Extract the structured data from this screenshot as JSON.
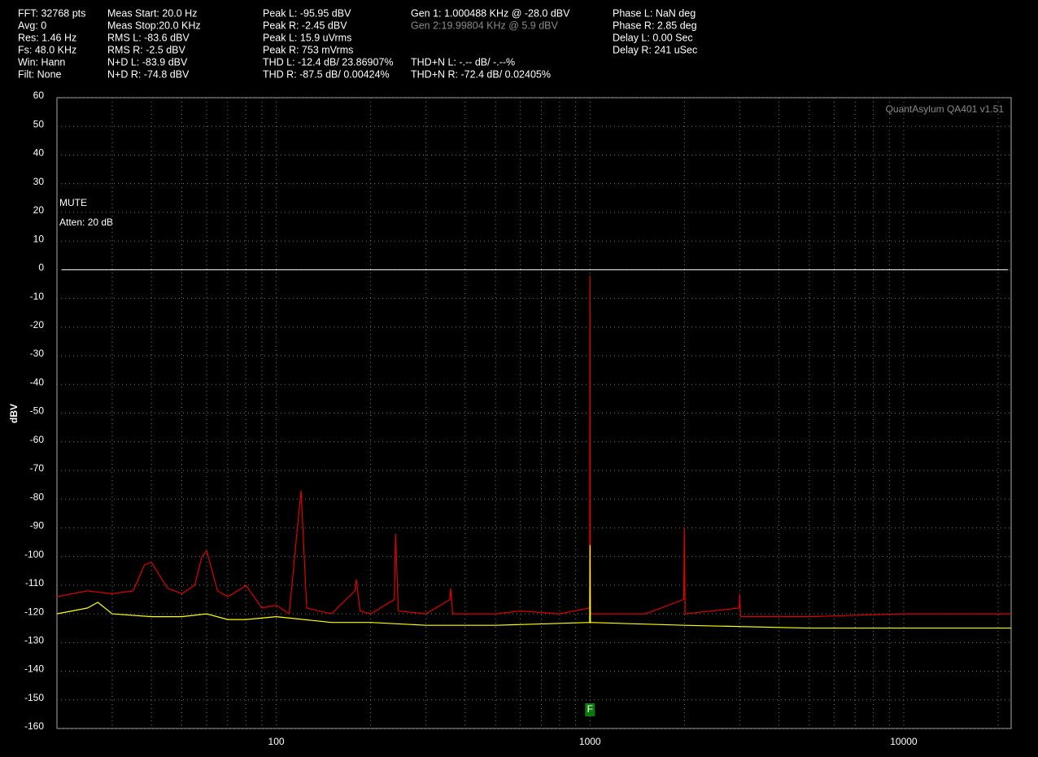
{
  "header": {
    "columns": [
      [
        "FFT: 32768 pts",
        "Avg: 0",
        "Res: 1.46 Hz",
        "Fs: 48.0 KHz",
        "Win: Hann",
        "Filt: None"
      ],
      [
        "Meas Start: 20.0 Hz",
        "Meas Stop:20.0 KHz",
        "RMS L: -83.6 dBV",
        "RMS R: -2.5 dBV",
        "N+D L: -83.9 dBV",
        "N+D R: -74.8 dBV"
      ],
      [
        "Peak L: -95.95 dBV",
        "Peak R: -2.45 dBV",
        "Peak L: 15.9 uVrms",
        "Peak R: 753 mVrms",
        "THD L: -12.4 dB/ 23.86907%",
        "THD R: -87.5 dB/ 0.00424%"
      ],
      [
        "Gen 1: 1.000488 KHz @ -28.0  dBV",
        "Gen 2:19.99804 KHz @ 5.9  dBV"
      ],
      [
        "THD+N L: -.-- dB/ -.--%",
        "THD+N R: -72.4 dB/ 0.02405%"
      ],
      [
        "Phase L: NaN deg",
        "Phase R: 2.85 deg",
        "Delay L: 0.00 Sec",
        "Delay R: 241 uSec"
      ]
    ]
  },
  "chart_data": {
    "type": "line",
    "ylabel": "dBV",
    "watermark": "QuantAsylum QA401 v1.51",
    "annotations": [
      "MUTE",
      "Atten: 20 dB"
    ],
    "marker": {
      "label": "F",
      "x": 1000
    },
    "xscale": "log",
    "xlim": [
      20,
      22000
    ],
    "xticks": [
      100,
      1000,
      10000
    ],
    "xgrid_minor": [
      30,
      40,
      50,
      60,
      70,
      80,
      90,
      200,
      300,
      400,
      500,
      600,
      700,
      800,
      900,
      2000,
      3000,
      4000,
      5000,
      6000,
      7000,
      8000,
      9000,
      20000
    ],
    "ylim": [
      -160,
      60
    ],
    "yticks": [
      -160,
      -150,
      -140,
      -130,
      -120,
      -110,
      -100,
      -90,
      -80,
      -70,
      -60,
      -50,
      -40,
      -30,
      -20,
      -10,
      0,
      10,
      20,
      30,
      40,
      50,
      60
    ],
    "reference_line": 0,
    "grid": true,
    "series": [
      {
        "color": "#e00000",
        "x": [
          20,
          25,
          30,
          35,
          38,
          40,
          45,
          50,
          55,
          58,
          60,
          65,
          70,
          78,
          80,
          90,
          100,
          110,
          118,
          120,
          125,
          150,
          178,
          180,
          185,
          200,
          238,
          240,
          245,
          300,
          358,
          360,
          365,
          500,
          600,
          800,
          998,
          1000,
          1003,
          1500,
          1990,
          2000,
          2010,
          2990,
          3000,
          3020,
          5000,
          10000,
          22000
        ],
        "values": [
          -114,
          -112,
          -113,
          -112,
          -103,
          -102,
          -111,
          -113,
          -110,
          -100,
          -98,
          -112,
          -114,
          -111,
          -110,
          -118,
          -117,
          -120,
          -85,
          -77,
          -118,
          -120,
          -112,
          -108,
          -119,
          -120,
          -115,
          -92,
          -119,
          -120,
          -115,
          -111,
          -120,
          -120,
          -119,
          -120,
          -118,
          -2,
          -120,
          -120,
          -115,
          -90,
          -120,
          -118,
          -113,
          -121,
          -121,
          -120,
          -120
        ]
      },
      {
        "color": "#ffff00",
        "x": [
          20,
          25,
          27,
          30,
          40,
          50,
          60,
          70,
          80,
          100,
          150,
          200,
          300,
          500,
          998,
          1000,
          1003,
          2000,
          5000,
          10000,
          22000
        ],
        "values": [
          -120,
          -118,
          -116,
          -120,
          -121,
          -121,
          -120,
          -122,
          -122,
          -121,
          -123,
          -123,
          -124,
          -124,
          -123,
          -96,
          -123,
          -124,
          -125,
          -125,
          -125
        ]
      }
    ]
  }
}
